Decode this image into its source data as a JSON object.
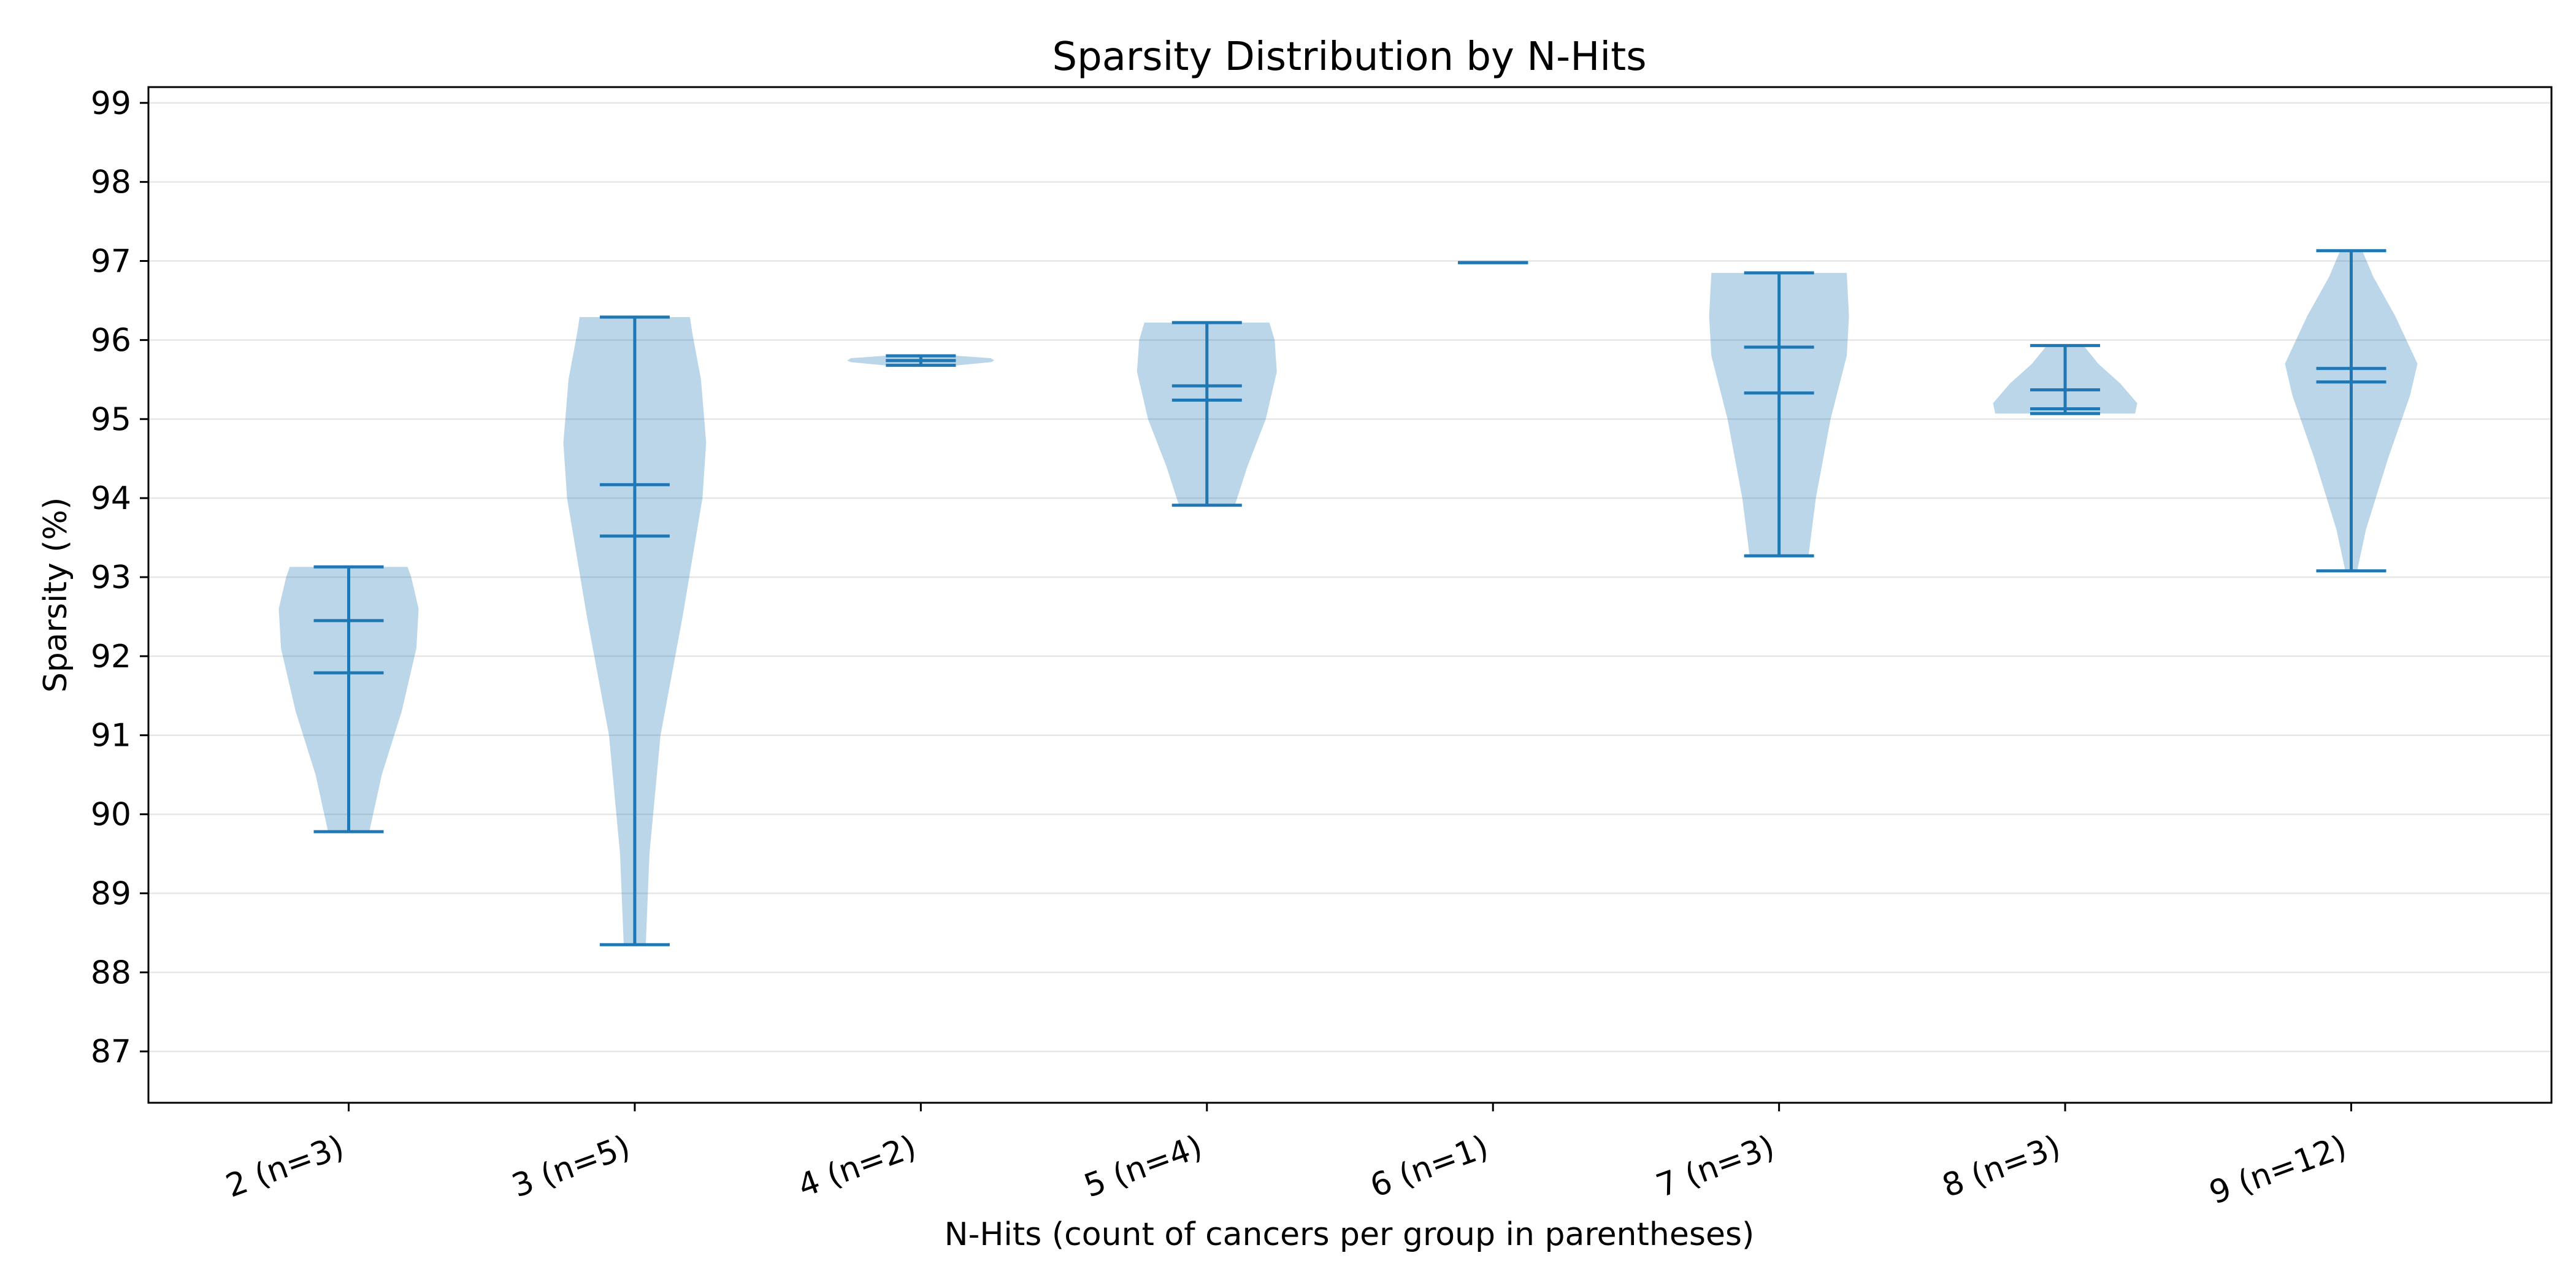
{
  "chart_data": {
    "type": "violin",
    "title": "Sparsity Distribution by N-Hits",
    "xlabel": "N-Hits (count of cancers per group in parentheses)",
    "ylabel": "Sparsity (%)",
    "ylim": [
      86.35,
      99.2
    ],
    "yticks": [
      "87",
      "88",
      "89",
      "90",
      "91",
      "92",
      "93",
      "94",
      "95",
      "96",
      "97",
      "98",
      "99"
    ],
    "grid": "horizontal",
    "categories": [
      "2 (n=3)",
      "3 (n=5)",
      "4 (n=2)",
      "5 (n=4)",
      "6 (n=1)",
      "7 (n=3)",
      "8 (n=3)",
      "9 (n=12)"
    ],
    "colors": {
      "line": "#1f77b4",
      "fill": "#1f77b4",
      "grid": "#e6e6e6"
    },
    "groups": [
      {
        "min": 89.78,
        "max": 93.13,
        "median": 91.79,
        "mean": 92.45,
        "profile": [
          [
            89.78,
            0.28
          ],
          [
            90.5,
            0.45
          ],
          [
            91.3,
            0.72
          ],
          [
            92.1,
            0.92
          ],
          [
            92.6,
            0.95
          ],
          [
            93.0,
            0.85
          ],
          [
            93.13,
            0.8
          ]
        ]
      },
      {
        "min": 88.35,
        "max": 96.29,
        "median": 93.52,
        "mean": 94.17,
        "profile": [
          [
            88.35,
            0.15
          ],
          [
            89.5,
            0.2
          ],
          [
            91.0,
            0.35
          ],
          [
            92.5,
            0.65
          ],
          [
            94.0,
            0.92
          ],
          [
            94.7,
            0.97
          ],
          [
            95.5,
            0.9
          ],
          [
            96.1,
            0.78
          ],
          [
            96.29,
            0.75
          ]
        ]
      },
      {
        "min": 95.68,
        "max": 95.8,
        "median": 95.74,
        "mean": 95.74,
        "profile": [
          [
            95.68,
            0.5
          ],
          [
            95.72,
            0.95
          ],
          [
            95.74,
            1.0
          ],
          [
            95.77,
            0.95
          ],
          [
            95.8,
            0.5
          ]
        ]
      },
      {
        "min": 93.91,
        "max": 96.22,
        "median": 95.24,
        "mean": 95.42,
        "profile": [
          [
            93.91,
            0.38
          ],
          [
            94.4,
            0.55
          ],
          [
            95.0,
            0.8
          ],
          [
            95.6,
            0.95
          ],
          [
            96.0,
            0.92
          ],
          [
            96.22,
            0.85
          ]
        ]
      },
      {
        "min": 96.98,
        "max": 96.98,
        "median": 96.98,
        "mean": 96.98,
        "profile": []
      },
      {
        "min": 93.27,
        "max": 96.85,
        "median": 95.33,
        "mean": 95.91,
        "profile": [
          [
            93.27,
            0.4
          ],
          [
            94.0,
            0.5
          ],
          [
            95.0,
            0.7
          ],
          [
            95.8,
            0.92
          ],
          [
            96.3,
            0.95
          ],
          [
            96.85,
            0.92
          ]
        ]
      },
      {
        "min": 95.07,
        "max": 95.93,
        "median": 95.13,
        "mean": 95.37,
        "profile": [
          [
            95.07,
            0.95
          ],
          [
            95.2,
            0.98
          ],
          [
            95.45,
            0.75
          ],
          [
            95.7,
            0.45
          ],
          [
            95.93,
            0.25
          ]
        ]
      },
      {
        "min": 93.08,
        "max": 97.13,
        "median": 95.47,
        "mean": 95.64,
        "profile": [
          [
            93.08,
            0.08
          ],
          [
            93.6,
            0.2
          ],
          [
            94.5,
            0.5
          ],
          [
            95.3,
            0.8
          ],
          [
            95.7,
            0.9
          ],
          [
            96.3,
            0.6
          ],
          [
            96.8,
            0.3
          ],
          [
            97.13,
            0.15
          ]
        ]
      }
    ]
  }
}
